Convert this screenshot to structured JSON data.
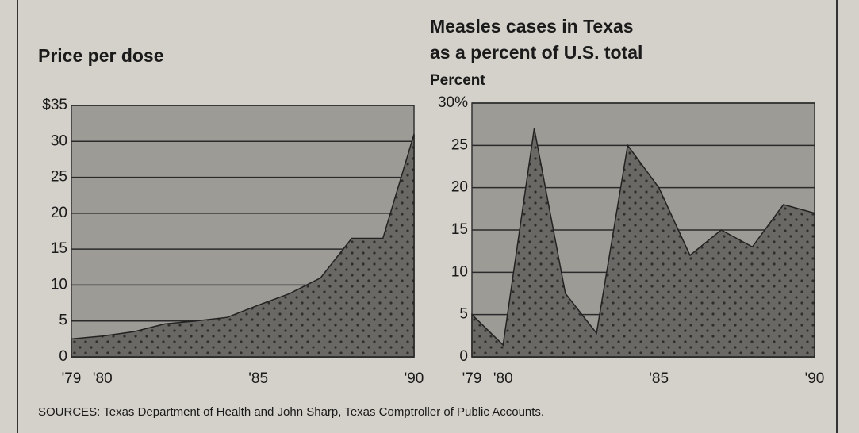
{
  "chart_data": [
    {
      "type": "area",
      "title": [
        "Price per dose"
      ],
      "x": [
        1979,
        1980,
        1981,
        1982,
        1983,
        1984,
        1985,
        1986,
        1987,
        1988,
        1989,
        1990
      ],
      "values": [
        2.5,
        2.9,
        3.5,
        4.6,
        5,
        5.5,
        7.2,
        8.8,
        11,
        16.5,
        16.5,
        31
      ],
      "xlim": [
        1979,
        1990
      ],
      "xticks": [
        {
          "value": 1979,
          "label": "'79"
        },
        {
          "value": 1980,
          "label": "'80"
        },
        {
          "value": 1985,
          "label": "'85"
        },
        {
          "value": 1990,
          "label": "'90"
        }
      ],
      "ylim": [
        0,
        35
      ],
      "yticks": [
        0,
        5,
        10,
        15,
        20,
        25,
        30,
        {
          "value": 35,
          "label": "$35"
        }
      ],
      "color": "#6a6864",
      "grid": true
    },
    {
      "type": "area",
      "title": [
        "Measles cases in Texas",
        "as a percent of U.S. total"
      ],
      "ylabel": "Percent",
      "x": [
        1979,
        1980,
        1981,
        1982,
        1983,
        1984,
        1985,
        1986,
        1987,
        1988,
        1989,
        1990
      ],
      "values": [
        5,
        1.4,
        27,
        7.5,
        2.8,
        25,
        20,
        12,
        15,
        13,
        18,
        17
      ],
      "xlim": [
        1979,
        1990
      ],
      "xticks": [
        {
          "value": 1979,
          "label": "'79"
        },
        {
          "value": 1980,
          "label": "'80"
        },
        {
          "value": 1985,
          "label": "'85"
        },
        {
          "value": 1990,
          "label": "'90"
        }
      ],
      "ylim": [
        0,
        30
      ],
      "yticks": [
        0,
        5,
        10,
        15,
        20,
        25,
        {
          "value": 30,
          "label": "30%"
        }
      ],
      "color": "#6a6864",
      "grid": true
    }
  ],
  "source": "SOURCES: Texas Department of Health and John Sharp, Texas Comptroller of Public Accounts."
}
